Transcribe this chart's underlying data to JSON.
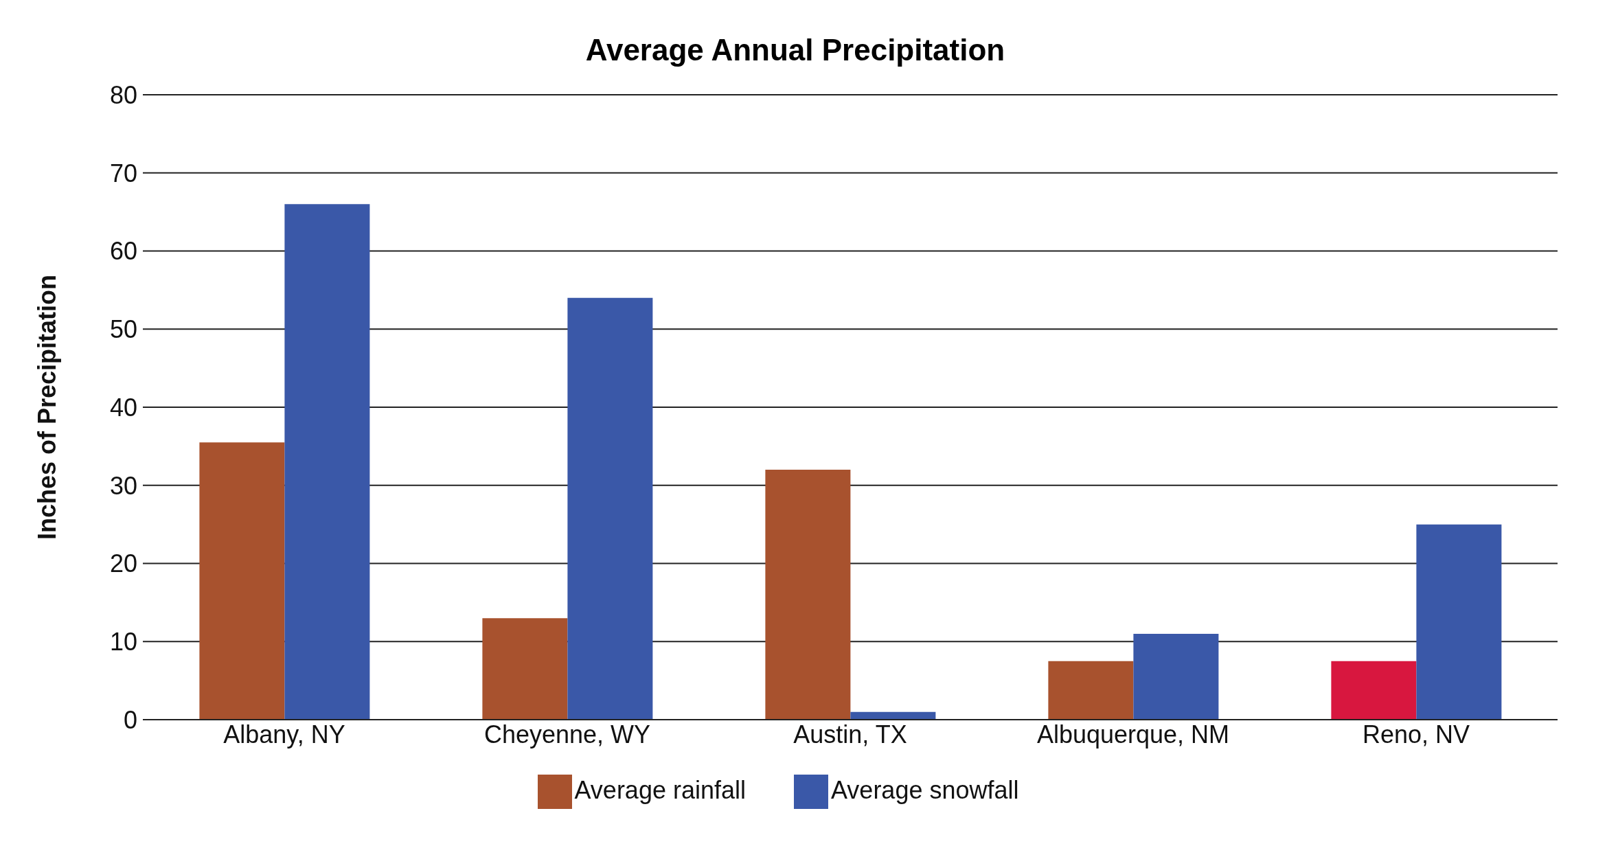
{
  "chart_data": {
    "type": "bar",
    "title": "Average Annual Precipitation",
    "ylabel": "Inches of Precipitation",
    "categories": [
      "Albany, NY",
      "Cheyenne, WY",
      "Austin, TX",
      "Albuquerque, NM",
      "Reno, NV"
    ],
    "series": [
      {
        "name": "Average rainfall",
        "color": "#a8522e",
        "colors": [
          "#a8522e",
          "#a8522e",
          "#a8522e",
          "#a8522e",
          "#d8173f"
        ],
        "values": [
          35.5,
          13,
          32,
          7.5,
          7.5
        ]
      },
      {
        "name": "Average snowfall",
        "color": "#3a58a8",
        "values": [
          66,
          54,
          1,
          11,
          25
        ]
      }
    ],
    "ylim": [
      0,
      80
    ],
    "yticks": [
      0,
      10,
      20,
      30,
      40,
      50,
      60,
      70,
      80
    ],
    "grid": "y",
    "legend": "bottom"
  }
}
